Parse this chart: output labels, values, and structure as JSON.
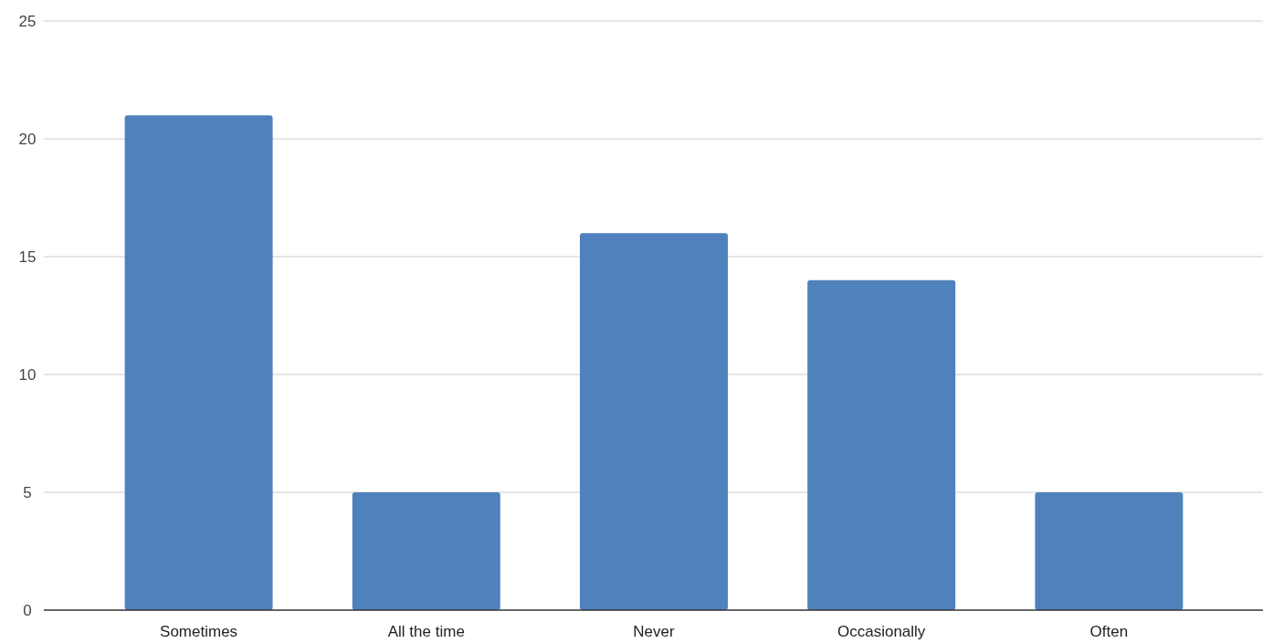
{
  "chart_data": {
    "type": "bar",
    "categories": [
      "Sometimes",
      "All the time",
      "Never",
      "Occasionally",
      "Often"
    ],
    "values": [
      21,
      5,
      16,
      14,
      5
    ],
    "color": "#4f81bd",
    "ylim": [
      0,
      25
    ],
    "yticks": [
      0,
      5,
      10,
      15,
      20,
      25
    ],
    "grid": "y"
  }
}
